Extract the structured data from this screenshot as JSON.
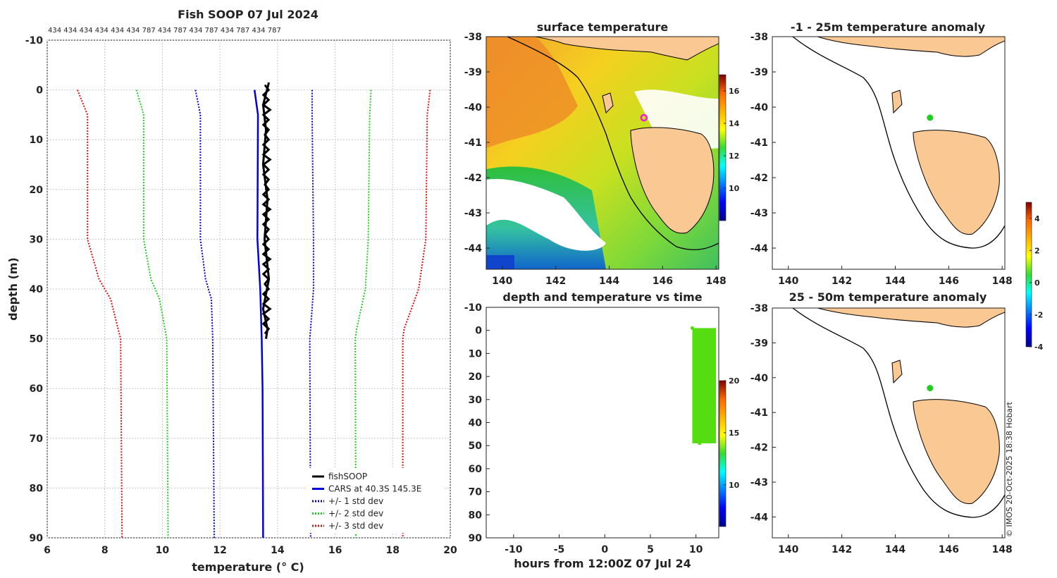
{
  "page": {
    "copyright": "© IMOS 20-Oct-2025 18:38 Hobart"
  },
  "chart_data": [
    {
      "id": "profile",
      "type": "line",
      "title": "Fish SOOP 07 Jul 2024",
      "top_labels": [
        "434",
        "434",
        "434",
        "434",
        "434",
        "434",
        "787",
        "434",
        "787",
        "434",
        "787",
        "434",
        "787",
        "434",
        "787"
      ],
      "xlabel": "temperature (° C)",
      "ylabel": "depth (m)",
      "xlim": [
        6,
        20
      ],
      "ylim": [
        90,
        -10
      ],
      "xticks": [
        6,
        8,
        10,
        12,
        14,
        16,
        18,
        20
      ],
      "yticks": [
        -10,
        0,
        10,
        20,
        30,
        40,
        50,
        60,
        70,
        80,
        90
      ],
      "legend_position": "bottom-right",
      "series": [
        {
          "name": "fishSOOP",
          "color": "#000000",
          "style": "solid",
          "width": 3,
          "points": [
            [
              13.7,
              -1.5
            ],
            [
              13.5,
              3
            ],
            [
              13.6,
              8
            ],
            [
              13.5,
              15
            ],
            [
              13.65,
              22
            ],
            [
              13.55,
              30
            ],
            [
              13.7,
              38
            ],
            [
              13.5,
              44
            ],
            [
              13.65,
              48
            ],
            [
              13.6,
              50
            ]
          ]
        },
        {
          "name": "CARS at 40.3S 145.3E",
          "color": "#0000dd",
          "style": "solid",
          "width": 2.5,
          "points": [
            [
              13.2,
              0
            ],
            [
              13.32,
              5
            ],
            [
              13.3,
              30
            ],
            [
              13.4,
              40
            ],
            [
              13.45,
              50
            ],
            [
              13.48,
              60
            ],
            [
              13.5,
              90
            ]
          ]
        },
        {
          "name": "+/- 1 std dev",
          "color": "#0000cc",
          "style": "dotted",
          "width": 2,
          "points": [
            [
              11.15,
              0
            ],
            [
              11.32,
              5
            ],
            [
              11.32,
              30
            ],
            [
              11.5,
              38
            ],
            [
              11.7,
              42
            ],
            [
              11.75,
              50
            ],
            [
              11.8,
              90
            ]
          ]
        },
        {
          "name": "+/- 1 std dev upper",
          "color": "#0000cc",
          "style": "dotted",
          "width": 2,
          "legend": false,
          "points": [
            [
              15.2,
              0
            ],
            [
              15.2,
              5
            ],
            [
              15.25,
              30
            ],
            [
              15.25,
              40
            ],
            [
              15.15,
              48
            ],
            [
              15.12,
              50
            ],
            [
              15.15,
              90
            ]
          ]
        },
        {
          "name": "+/- 2 std dev",
          "color": "#22cc22",
          "style": "dotted",
          "width": 2,
          "points": [
            [
              9.1,
              0
            ],
            [
              9.35,
              5
            ],
            [
              9.35,
              30
            ],
            [
              9.6,
              38
            ],
            [
              9.9,
              42
            ],
            [
              10.15,
              50
            ],
            [
              10.2,
              90
            ]
          ]
        },
        {
          "name": "+/- 2 std dev upper",
          "color": "#22cc22",
          "style": "dotted",
          "width": 2,
          "legend": false,
          "points": [
            [
              17.25,
              0
            ],
            [
              17.2,
              5
            ],
            [
              17.15,
              30
            ],
            [
              17.05,
              40
            ],
            [
              16.75,
              48
            ],
            [
              16.7,
              50
            ],
            [
              16.72,
              90
            ]
          ]
        },
        {
          "name": "+/- 3 std dev",
          "color": "#dd1111",
          "style": "dotted",
          "width": 2,
          "points": [
            [
              7.05,
              0
            ],
            [
              7.4,
              5
            ],
            [
              7.4,
              30
            ],
            [
              7.8,
              38
            ],
            [
              8.2,
              42
            ],
            [
              8.55,
              50
            ],
            [
              8.6,
              90
            ]
          ]
        },
        {
          "name": "+/- 3 std dev upper",
          "color": "#dd1111",
          "style": "dotted",
          "width": 2,
          "legend": false,
          "points": [
            [
              19.3,
              0
            ],
            [
              19.2,
              5
            ],
            [
              19.15,
              30
            ],
            [
              18.9,
              40
            ],
            [
              18.4,
              48
            ],
            [
              18.35,
              50
            ],
            [
              18.35,
              90
            ]
          ]
        }
      ]
    },
    {
      "id": "sst",
      "type": "heatmap",
      "title": "surface temperature",
      "xlim": [
        139.4,
        148.1
      ],
      "ylim": [
        -44.6,
        -38
      ],
      "xticks": [
        140,
        142,
        144,
        146,
        148
      ],
      "yticks": [
        -38,
        -39,
        -40,
        -41,
        -42,
        -43,
        -44
      ],
      "colorbar": {
        "min": 8,
        "max": 17,
        "ticks": [
          10,
          12,
          14,
          16
        ]
      },
      "marker": {
        "lon": 145.3,
        "lat": -40.3,
        "color": "#ee22cc"
      }
    },
    {
      "id": "timeseries",
      "type": "scatter",
      "title": "depth and temperature vs time",
      "xlabel": "hours from 12:00Z 07 Jul 24",
      "xlim": [
        -13,
        12.5
      ],
      "ylim": [
        90,
        -10
      ],
      "xticks": [
        -10,
        -5,
        0,
        5,
        10
      ],
      "yticks": [
        -10,
        0,
        10,
        20,
        30,
        40,
        50,
        60,
        70,
        80,
        90
      ],
      "colorbar": {
        "min": 6,
        "max": 20,
        "ticks": [
          10,
          15,
          20
        ]
      },
      "cluster": {
        "hours_from": 9.6,
        "hours_to": 12.2,
        "depth_from": -2,
        "depth_to": 49,
        "temperature": 13.6,
        "color": "#55dd11"
      }
    },
    {
      "id": "anom1",
      "type": "heatmap",
      "title": "-1 - 25m temperature anomaly",
      "xlim": [
        139.4,
        148.1
      ],
      "ylim": [
        -44.6,
        -38
      ],
      "xticks": [
        140,
        142,
        144,
        146,
        148
      ],
      "yticks": [
        -38,
        -39,
        -40,
        -41,
        -42,
        -43,
        -44
      ],
      "marker": {
        "lon": 145.3,
        "lat": -40.3,
        "anomaly": 0,
        "color": "#22cc22"
      }
    },
    {
      "id": "anom2",
      "type": "heatmap",
      "title": "25 - 50m temperature anomaly",
      "xlim": [
        139.4,
        148.1
      ],
      "ylim": [
        -44.6,
        -38
      ],
      "xticks": [
        140,
        142,
        144,
        146,
        148
      ],
      "yticks": [
        -38,
        -39,
        -40,
        -41,
        -42,
        -43,
        -44
      ],
      "marker": {
        "lon": 145.3,
        "lat": -40.3,
        "anomaly": 0,
        "color": "#22cc22"
      },
      "colorbar": {
        "min": -4,
        "max": 5,
        "ticks": [
          -4,
          -2,
          0,
          2,
          4
        ]
      }
    }
  ]
}
